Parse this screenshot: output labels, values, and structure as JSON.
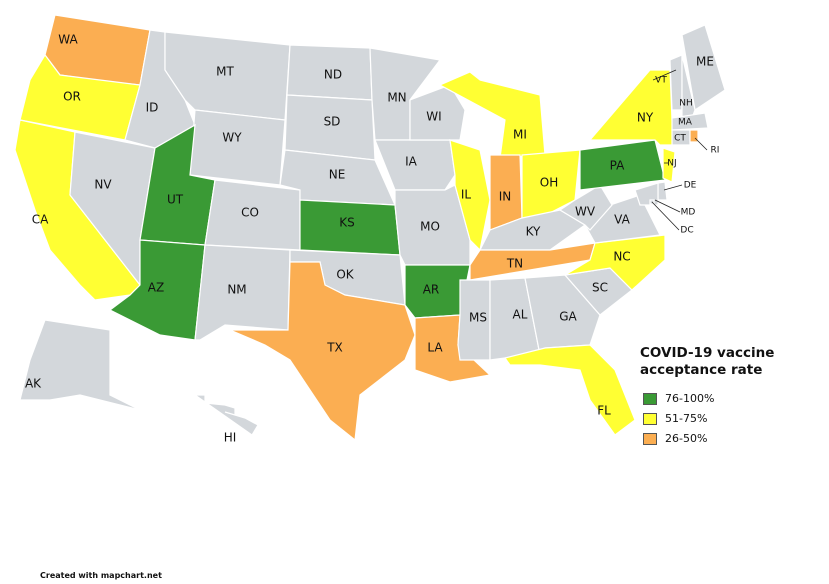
{
  "states": [
    {
      "label": "WA",
      "color": "#fbae52"
    },
    {
      "label": "OR",
      "color": "#ffff33"
    },
    {
      "label": "CA",
      "color": "#ffff33"
    },
    {
      "label": "NV",
      "color": "#d3d7db"
    },
    {
      "label": "ID",
      "color": "#d3d7db"
    },
    {
      "label": "MT",
      "color": "#d3d7db"
    },
    {
      "label": "WY",
      "color": "#d3d7db"
    },
    {
      "label": "UT",
      "color": "#3a9a35"
    },
    {
      "label": "CO",
      "color": "#d3d7db"
    },
    {
      "label": "AZ",
      "color": "#3a9a35"
    },
    {
      "label": "NM",
      "color": "#d3d7db"
    },
    {
      "label": "ND",
      "color": "#d3d7db"
    },
    {
      "label": "SD",
      "color": "#d3d7db"
    },
    {
      "label": "NE",
      "color": "#d3d7db"
    },
    {
      "label": "KS",
      "color": "#3a9a35"
    },
    {
      "label": "OK",
      "color": "#d3d7db"
    },
    {
      "label": "TX",
      "color": "#fbae52"
    },
    {
      "label": "MN",
      "color": "#d3d7db"
    },
    {
      "label": "IA",
      "color": "#d3d7db"
    },
    {
      "label": "MO",
      "color": "#d3d7db"
    },
    {
      "label": "AR",
      "color": "#3a9a35"
    },
    {
      "label": "LA",
      "color": "#fbae52"
    },
    {
      "label": "WI",
      "color": "#d3d7db"
    },
    {
      "label": "IL",
      "color": "#ffff33"
    },
    {
      "label": "MI",
      "color": "#ffff33"
    },
    {
      "label": "IN",
      "color": "#fbae52"
    },
    {
      "label": "OH",
      "color": "#ffff33"
    },
    {
      "label": "KY",
      "color": "#d3d7db"
    },
    {
      "label": "TN",
      "color": "#fbae52"
    },
    {
      "label": "MS",
      "color": "#d3d7db"
    },
    {
      "label": "AL",
      "color": "#d3d7db"
    },
    {
      "label": "GA",
      "color": "#d3d7db"
    },
    {
      "label": "FL",
      "color": "#ffff33"
    },
    {
      "label": "SC",
      "color": "#d3d7db"
    },
    {
      "label": "NC",
      "color": "#ffff33"
    },
    {
      "label": "VA",
      "color": "#d3d7db"
    },
    {
      "label": "WV",
      "color": "#d3d7db"
    },
    {
      "label": "PA",
      "color": "#3a9a35"
    },
    {
      "label": "NY",
      "color": "#ffff33"
    },
    {
      "label": "ME",
      "color": "#d3d7db"
    },
    {
      "label": "VT",
      "color": "#d3d7db"
    },
    {
      "label": "NH",
      "color": "#d3d7db"
    },
    {
      "label": "MA",
      "color": "#d3d7db"
    },
    {
      "label": "CT",
      "color": "#d3d7db"
    },
    {
      "label": "RI",
      "color": "#fbae52"
    },
    {
      "label": "NJ",
      "color": "#ffff33"
    },
    {
      "label": "DE",
      "color": "#d3d7db"
    },
    {
      "label": "MD",
      "color": "#d3d7db"
    },
    {
      "label": "DC",
      "color": "#d3d7db"
    },
    {
      "label": "AK",
      "color": "#d3d7db"
    },
    {
      "label": "HI",
      "color": "#d3d7db"
    }
  ],
  "legend": {
    "title": "COVID-19 vaccine acceptance rate",
    "items": [
      {
        "label": "76-100%",
        "color": "#3a9a35"
      },
      {
        "label": "51-75%",
        "color": "#ffff33"
      },
      {
        "label": "26-50%",
        "color": "#fbae52"
      }
    ]
  },
  "footer": "Created with mapchart.net"
}
